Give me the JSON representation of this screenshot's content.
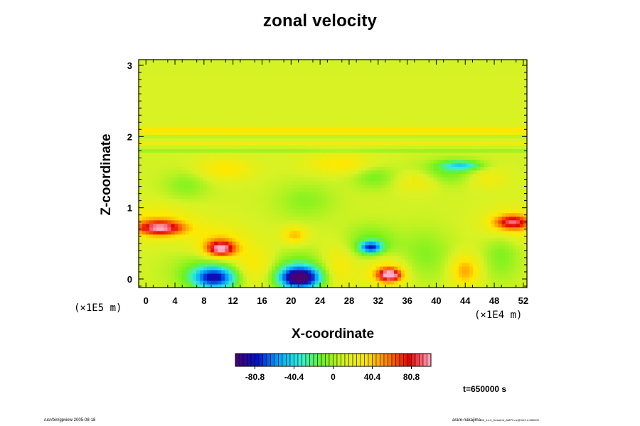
{
  "figure": {
    "time_label": "t=650000 s",
    "footer_left": "/usr/bin/gpview 2005-08-18",
    "footer_right_main": "arare-nakajima",
    "footer_right_small": "D3_1e-3_Kessler4_AMP2.nc@VelX,t=650000"
  },
  "colors": {
    "background": "#ffffff",
    "axes": "#000000"
  },
  "chart_data": {
    "type": "heatmap",
    "title": "zonal velocity",
    "xlabel": "X-coordinate",
    "ylabel": "Z-coordinate",
    "x_unit": "(×1E4 m)",
    "z_unit": "(×1E5 m)",
    "xlim": [
      -1,
      52.5
    ],
    "ylim": [
      -0.12,
      3.08
    ],
    "x_ticks": [
      0,
      4,
      8,
      12,
      16,
      20,
      24,
      28,
      32,
      36,
      40,
      44,
      48,
      52
    ],
    "x_tick_labels": [
      "0",
      "4",
      "8",
      "12",
      "16",
      "20",
      "24",
      "28",
      "32",
      "36",
      "40",
      "44",
      "48",
      "52"
    ],
    "y_ticks": [
      0,
      1,
      2,
      3
    ],
    "y_tick_labels": [
      "0",
      "1",
      "2",
      "3"
    ],
    "colorbar": {
      "min": -101,
      "max": 101,
      "tick_values": [
        -80.8,
        -40.4,
        0,
        40.4,
        80.8
      ],
      "tick_labels": [
        "-80.8",
        "-40.4",
        "0",
        "40.4",
        "80.8"
      ],
      "segments": 50,
      "stops": [
        "#4a0070",
        "#0012c8",
        "#00a8ff",
        "#36f0d8",
        "#6ef21e",
        "#d8f224",
        "#ffe800",
        "#ff8000",
        "#e60000",
        "#ffb0c8"
      ]
    },
    "background_value": 10,
    "features": [
      {
        "kind": "blob",
        "x": 9.5,
        "z": 0.02,
        "rx": 3.0,
        "rz": 0.15,
        "value": -78
      },
      {
        "kind": "blob",
        "x": 8.5,
        "z": 0.12,
        "rx": 4.5,
        "rz": 0.28,
        "value": -24
      },
      {
        "kind": "blob",
        "x": 21.2,
        "z": 0.02,
        "rx": 2.8,
        "rz": 0.15,
        "value": -104
      },
      {
        "kind": "blob",
        "x": 21.0,
        "z": 0.12,
        "rx": 4.5,
        "rz": 0.26,
        "value": -28
      },
      {
        "kind": "blob",
        "x": 33.6,
        "z": 0.06,
        "rx": 1.6,
        "rz": 0.09,
        "value": 88
      },
      {
        "kind": "blob",
        "x": 33.0,
        "z": 0.12,
        "rx": 3.0,
        "rz": 0.22,
        "value": 28
      },
      {
        "kind": "blob",
        "x": 10.3,
        "z": 0.43,
        "rx": 2.0,
        "rz": 0.11,
        "value": 80
      },
      {
        "kind": "blob",
        "x": 10.0,
        "z": 0.52,
        "rx": 4.0,
        "rz": 0.25,
        "value": 26
      },
      {
        "kind": "blob",
        "x": 2.0,
        "z": 0.72,
        "rx": 3.3,
        "rz": 0.1,
        "value": 70
      },
      {
        "kind": "blob",
        "x": 1.5,
        "z": 0.8,
        "rx": 5.0,
        "rz": 0.24,
        "value": 26
      },
      {
        "kind": "blob",
        "x": 50.5,
        "z": 0.8,
        "rx": 2.5,
        "rz": 0.1,
        "value": 62
      },
      {
        "kind": "blob",
        "x": 50.5,
        "z": 0.78,
        "rx": 4.0,
        "rz": 0.25,
        "value": 24
      },
      {
        "kind": "blob",
        "x": 31.0,
        "z": 0.45,
        "rx": 1.5,
        "rz": 0.08,
        "value": -72
      },
      {
        "kind": "blob",
        "x": 31.0,
        "z": 0.5,
        "rx": 3.5,
        "rz": 0.25,
        "value": -24
      },
      {
        "kind": "blob",
        "x": 20.5,
        "z": 0.62,
        "rx": 1.8,
        "rz": 0.12,
        "value": 34
      },
      {
        "kind": "blob",
        "x": 15.0,
        "z": 0.18,
        "rx": 3.0,
        "rz": 0.28,
        "value": 26
      },
      {
        "kind": "blob",
        "x": 26.5,
        "z": 0.18,
        "rx": 2.5,
        "rz": 0.3,
        "value": 24
      },
      {
        "kind": "blob",
        "x": 44.0,
        "z": 0.12,
        "rx": 2.0,
        "rz": 0.22,
        "value": 38
      },
      {
        "kind": "blob",
        "x": 49.0,
        "z": 0.35,
        "rx": 2.5,
        "rz": 0.35,
        "value": -18
      },
      {
        "kind": "blob",
        "x": 38.5,
        "z": 0.35,
        "rx": 3.5,
        "rz": 0.35,
        "value": -16
      },
      {
        "kind": "blob",
        "x": 43.5,
        "z": 1.6,
        "rx": 2.8,
        "rz": 0.07,
        "value": -42
      },
      {
        "kind": "blob",
        "x": 41.5,
        "z": 1.5,
        "rx": 4.5,
        "rz": 0.18,
        "value": -22
      },
      {
        "kind": "blob",
        "x": 31.5,
        "z": 1.45,
        "rx": 3.0,
        "rz": 0.18,
        "value": -20
      },
      {
        "kind": "blob",
        "x": 5.5,
        "z": 1.32,
        "rx": 3.0,
        "rz": 0.2,
        "value": -16
      },
      {
        "kind": "blob",
        "x": 22.0,
        "z": 1.1,
        "rx": 4.0,
        "rz": 0.25,
        "value": -15
      },
      {
        "kind": "blob",
        "x": 11.0,
        "z": 1.55,
        "rx": 4.0,
        "rz": 0.15,
        "value": 24
      },
      {
        "kind": "blob",
        "x": 27.0,
        "z": 1.62,
        "rx": 5.0,
        "rz": 0.14,
        "value": 24
      },
      {
        "kind": "blob",
        "x": 37.5,
        "z": 1.38,
        "rx": 3.0,
        "rz": 0.15,
        "value": 20
      },
      {
        "kind": "blob",
        "x": 47.0,
        "z": 1.42,
        "rx": 3.0,
        "rz": 0.15,
        "value": 18
      },
      {
        "kind": "band",
        "z": 2.12,
        "rz": 0.025,
        "value": 28
      },
      {
        "kind": "band",
        "z": 2.06,
        "rz": 0.02,
        "value": 18
      },
      {
        "kind": "band",
        "z": 1.99,
        "rz": 0.02,
        "value": -9
      },
      {
        "kind": "band",
        "z": 1.9,
        "rz": 0.03,
        "value": 14
      },
      {
        "kind": "band",
        "z": 1.82,
        "rz": 0.03,
        "value": -14
      },
      {
        "kind": "band",
        "z": 2.45,
        "rz": 0.5,
        "value": 2
      }
    ]
  }
}
